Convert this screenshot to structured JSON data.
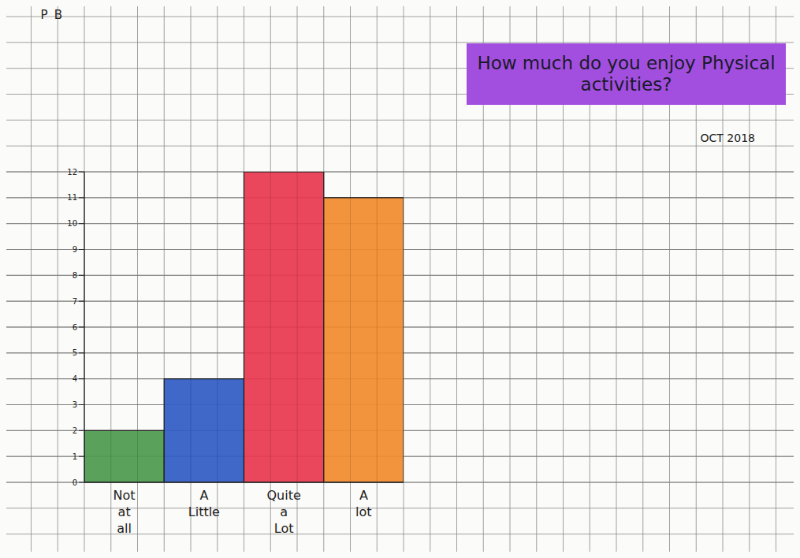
{
  "chart_data": {
    "type": "bar",
    "title": "How much do you enjoy Physical activities?",
    "annotations": [
      "P",
      "B",
      "OCT 2018"
    ],
    "categories": [
      "Not at all",
      "A Little",
      "Quite a Lot",
      "A lot"
    ],
    "values": [
      2,
      4,
      12,
      11
    ],
    "colors": [
      "#4c9a4e",
      "#2f5bc4",
      "#e8374e",
      "#f18a2e"
    ],
    "ylim": [
      0,
      12
    ],
    "yticks": [
      0,
      1,
      2,
      3,
      4,
      5,
      6,
      7,
      8,
      9,
      10,
      11,
      12
    ],
    "grid": true
  }
}
